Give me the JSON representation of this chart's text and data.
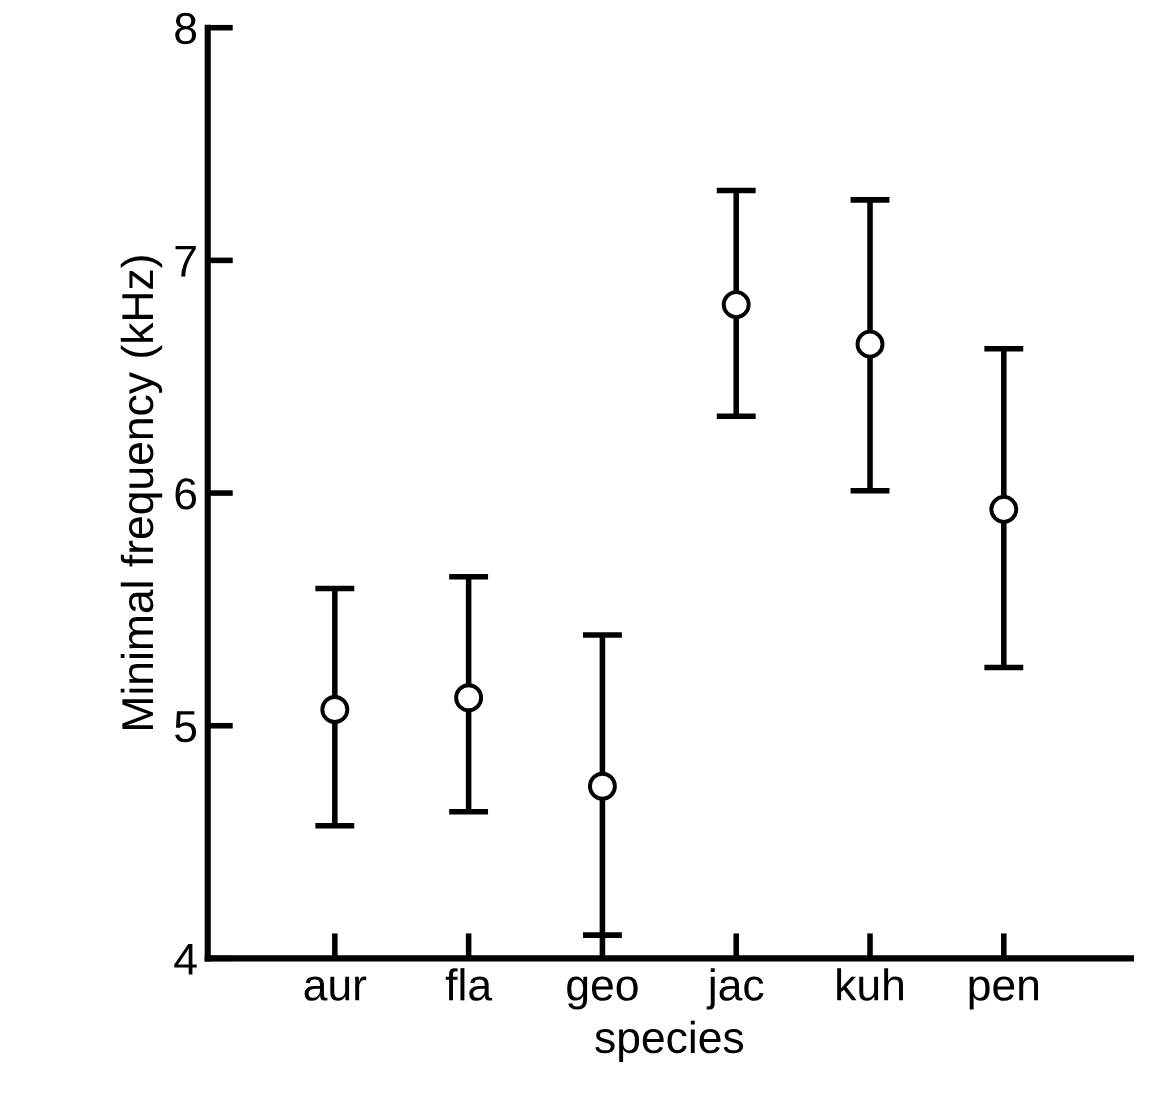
{
  "chart_data": {
    "type": "scatter",
    "xlabel": "species",
    "ylabel": "Minimal frequency (kHz)",
    "categories": [
      "aur",
      "fla",
      "geo",
      "jac",
      "kuh",
      "pen"
    ],
    "series": [
      {
        "color": "#000000",
        "values": [
          5.07,
          5.12,
          4.74,
          6.81,
          6.64,
          5.93
        ],
        "errors": [
          [
            4.57,
            5.59
          ],
          [
            4.63,
            5.64
          ],
          [
            4.1,
            5.39
          ],
          [
            6.33,
            7.3
          ],
          [
            6.01,
            7.26
          ],
          [
            5.25,
            6.62
          ]
        ]
      }
    ],
    "ylim": [
      4,
      8
    ],
    "yticks": [
      4,
      5,
      6,
      7,
      8
    ],
    "marker": "circle",
    "grid": false,
    "legend": false
  }
}
